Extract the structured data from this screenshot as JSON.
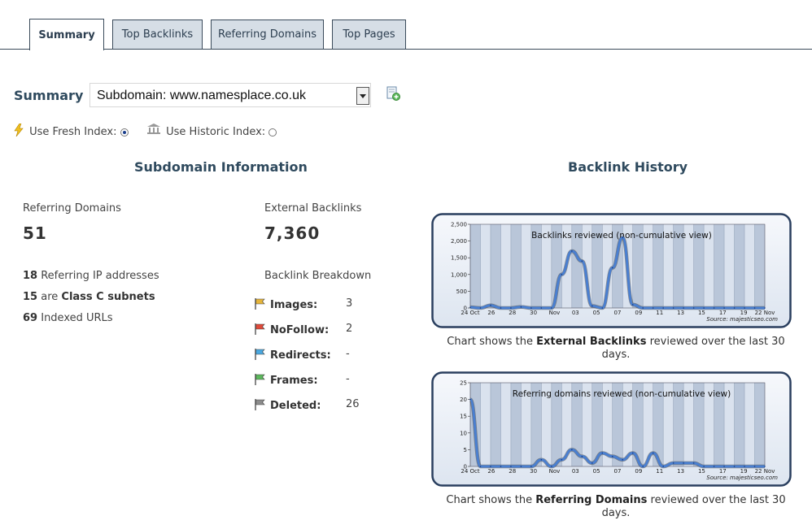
{
  "tabs": [
    "Summary",
    "Top Backlinks",
    "Referring Domains",
    "Top Pages"
  ],
  "summary": {
    "label": "Summary",
    "select_value": "Subdomain: www.namesplace.co.uk",
    "fresh_label": "Use Fresh Index:",
    "historic_label": "Use Historic Index:",
    "fresh_selected": true
  },
  "info": {
    "heading": "Subdomain Information",
    "referring_domains_label": "Referring Domains",
    "referring_domains_value": "51",
    "external_backlinks_label": "External Backlinks",
    "external_backlinks_value": "7,360",
    "stats": [
      {
        "num": "18",
        "text": "Referring IP addresses"
      },
      {
        "num": "15",
        "pre": "are",
        "bold": "Class C subnets"
      },
      {
        "num": "69",
        "text": "Indexed URLs"
      }
    ],
    "breakdown_label": "Backlink Breakdown",
    "breakdown": [
      {
        "name": "Images:",
        "value": "3",
        "color": "#e6b53a"
      },
      {
        "name": "NoFollow:",
        "value": "2",
        "color": "#e04a3a"
      },
      {
        "name": "Redirects:",
        "value": "-",
        "color": "#4aa8e0"
      },
      {
        "name": "Frames:",
        "value": "-",
        "color": "#5cb85c"
      },
      {
        "name": "Deleted:",
        "value": "26",
        "color": "#8c8c8c"
      }
    ]
  },
  "history": {
    "heading": "Backlink History",
    "caption1_pre": "Chart shows the",
    "caption1_bold": "External Backlinks",
    "caption1_post": "reviewed over the last 30 days.",
    "caption2_pre": "Chart shows the",
    "caption2_bold": "Referring Domains",
    "caption2_post": "reviewed over the last 30 days."
  },
  "chart_data": [
    {
      "type": "line",
      "title": "Backlinks reviewed (non-cumulative view)",
      "source": "Source: majesticseo.com",
      "x_ticks": [
        "24 Oct",
        "26",
        "28",
        "30",
        "Nov",
        "03",
        "05",
        "07",
        "09",
        "11",
        "13",
        "15",
        "17",
        "19",
        "22 Nov"
      ],
      "y_ticks": [
        "0",
        "500",
        "1,000",
        "1,500",
        "2,000",
        "2,500"
      ],
      "ylim": [
        0,
        2500
      ],
      "x": [
        0,
        1,
        2,
        3,
        4,
        5,
        6,
        7,
        8,
        9,
        10,
        11,
        12,
        13,
        14,
        15,
        16,
        17,
        18,
        19,
        20,
        21,
        22,
        23,
        24,
        25,
        26,
        27,
        28,
        29
      ],
      "values": [
        20,
        0,
        80,
        0,
        0,
        30,
        0,
        0,
        0,
        1000,
        1700,
        1400,
        60,
        0,
        1200,
        2100,
        100,
        0,
        0,
        0,
        0,
        0,
        0,
        0,
        0,
        0,
        0,
        0,
        0,
        0
      ],
      "line_color": "#4a7fd0"
    },
    {
      "type": "line",
      "title": "Referring domains reviewed (non-cumulative view)",
      "source": "Source: majesticseo.com",
      "x_ticks": [
        "24 Oct",
        "26",
        "28",
        "30",
        "Nov",
        "03",
        "05",
        "07",
        "09",
        "11",
        "13",
        "15",
        "17",
        "19",
        "22 Nov"
      ],
      "y_ticks": [
        "0",
        "5",
        "10",
        "15",
        "20",
        "25"
      ],
      "ylim": [
        0,
        25
      ],
      "x": [
        0,
        1,
        2,
        3,
        4,
        5,
        6,
        7,
        8,
        9,
        10,
        11,
        12,
        13,
        14,
        15,
        16,
        17,
        18,
        19,
        20,
        21,
        22,
        23,
        24,
        25,
        26,
        27,
        28,
        29
      ],
      "values": [
        20,
        0,
        0,
        0,
        0,
        0,
        0,
        2,
        0,
        2,
        5,
        3,
        1,
        4,
        3,
        2,
        4,
        0,
        4,
        0,
        1,
        1,
        1,
        0,
        0,
        0,
        0,
        0,
        0,
        0
      ],
      "line_color": "#4a7fd0"
    }
  ]
}
